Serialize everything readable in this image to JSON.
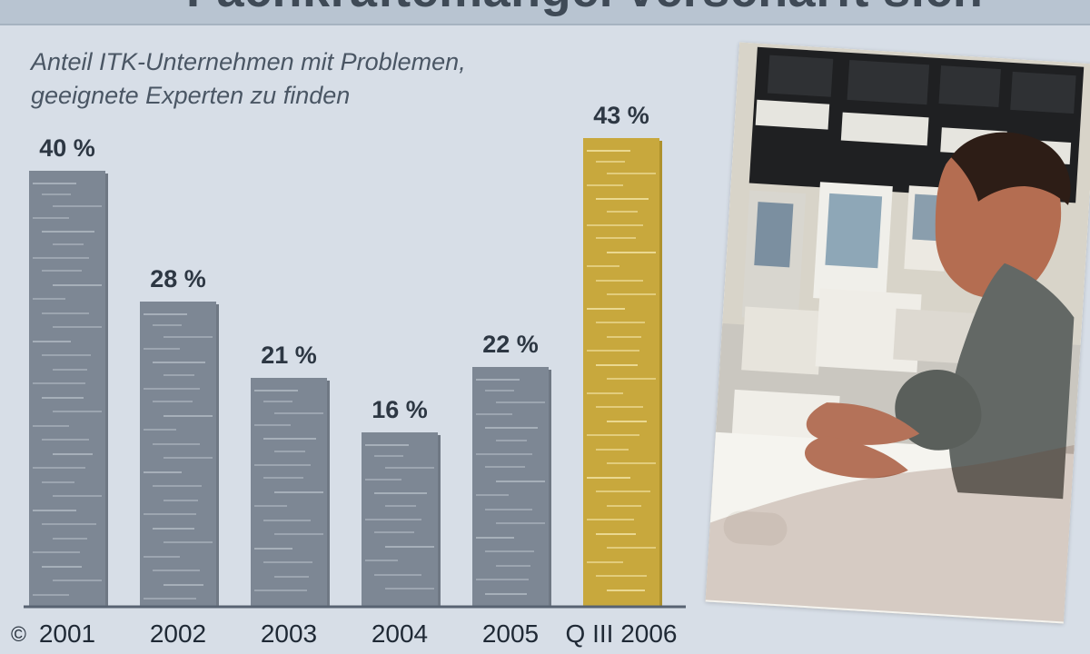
{
  "header": {
    "title_fragment": "Fachkräftemangel verschärft sich"
  },
  "subtitle": {
    "line1": "Anteil ITK-Unternehmen mit Problemen,",
    "line2": "geeignete Experten zu finden"
  },
  "copyright": "©",
  "chart_data": {
    "type": "bar",
    "categories": [
      "2001",
      "2002",
      "2003",
      "2004",
      "2005",
      "Q III 2006"
    ],
    "values": [
      40,
      28,
      21,
      16,
      22,
      43
    ],
    "value_labels": [
      "40 %",
      "28 %",
      "21 %",
      "16 %",
      "22 %",
      "43 %"
    ],
    "title": "Anteil ITK-Unternehmen mit Problemen, geeignete Experten zu finden",
    "xlabel": "",
    "ylabel": "",
    "ylim": [
      0,
      43
    ],
    "grid": false,
    "legend": "none",
    "colors": {
      "default_bar": "#7d8794",
      "highlight_bar": "#c8a83d",
      "default_stripe": "#c9d0d8",
      "highlight_stripe": "#f3e5a5",
      "baseline": "#586372"
    },
    "highlight_index": 5
  },
  "photo": {
    "icon": "computer-operator-photo"
  }
}
